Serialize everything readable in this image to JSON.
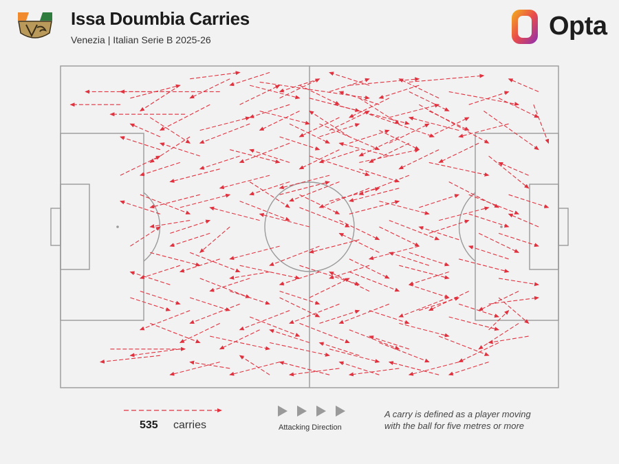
{
  "header": {
    "title": "Issa Doumbia Carries",
    "subtitle": "Venezia | Italian Serie B 2025-26",
    "brand": "Opta"
  },
  "legend": {
    "count": "535",
    "count_label": "carries",
    "direction_label": "Attacking Direction",
    "note_line1": "A carry is defined as a player moving",
    "note_line2": "with the ball for five metres or more"
  },
  "colors": {
    "carry": "#e0313e",
    "pitch_lines": "#9a9a9a",
    "background": "#f2f2f2",
    "arrow_icon": "#9a9a9a",
    "brand_gradient": [
      "#f3b21b",
      "#e94b4b",
      "#8a2fb5"
    ],
    "badge_orange": "#f08a2c",
    "badge_green": "#2e7d3e",
    "badge_gold": "#b99a5b"
  },
  "chart_data": {
    "type": "scatter",
    "subtype": "carry-arrows",
    "title": "Issa Doumbia Carries",
    "subtitle": "Venezia | Italian Serie B 2025-26",
    "total_carries": 535,
    "attacking_direction": "left-to-right",
    "pitch_units": "opta 0-100 (x along length, y across width, 0 = top)",
    "xlim": [
      0,
      100
    ],
    "ylim": [
      0,
      100
    ],
    "carries": [
      [
        32,
        8,
        5,
        8
      ],
      [
        22,
        8,
        12,
        8
      ],
      [
        12,
        12,
        2,
        12
      ],
      [
        25,
        15,
        10,
        15
      ],
      [
        40,
        5,
        62,
        10
      ],
      [
        58,
        6,
        72,
        4
      ],
      [
        70,
        5,
        85,
        3
      ],
      [
        78,
        8,
        92,
        12
      ],
      [
        66,
        10,
        58,
        16
      ],
      [
        55,
        12,
        70,
        18
      ],
      [
        48,
        14,
        40,
        20
      ],
      [
        44,
        10,
        52,
        4
      ],
      [
        62,
        15,
        75,
        22
      ],
      [
        72,
        12,
        86,
        24
      ],
      [
        85,
        14,
        96,
        26
      ],
      [
        95,
        12,
        98,
        24
      ],
      [
        90,
        18,
        80,
        22
      ],
      [
        80,
        20,
        70,
        16
      ],
      [
        68,
        22,
        60,
        28
      ],
      [
        58,
        22,
        50,
        14
      ],
      [
        52,
        18,
        64,
        26
      ],
      [
        46,
        24,
        36,
        30
      ],
      [
        38,
        18,
        28,
        24
      ],
      [
        30,
        12,
        20,
        20
      ],
      [
        26,
        22,
        18,
        30
      ],
      [
        34,
        26,
        44,
        30
      ],
      [
        50,
        28,
        62,
        34
      ],
      [
        60,
        30,
        72,
        26
      ],
      [
        74,
        30,
        86,
        34
      ],
      [
        86,
        28,
        94,
        38
      ],
      [
        78,
        36,
        88,
        44
      ],
      [
        70,
        34,
        60,
        40
      ],
      [
        62,
        38,
        52,
        44
      ],
      [
        54,
        34,
        44,
        38
      ],
      [
        42,
        34,
        32,
        38
      ],
      [
        32,
        32,
        22,
        36
      ],
      [
        24,
        30,
        16,
        34
      ],
      [
        28,
        40,
        18,
        44
      ],
      [
        36,
        42,
        46,
        48
      ],
      [
        48,
        44,
        58,
        50
      ],
      [
        58,
        46,
        68,
        42
      ],
      [
        66,
        48,
        76,
        54
      ],
      [
        76,
        48,
        86,
        44
      ],
      [
        84,
        52,
        92,
        58
      ],
      [
        72,
        56,
        62,
        60
      ],
      [
        60,
        54,
        50,
        58
      ],
      [
        52,
        56,
        42,
        62
      ],
      [
        44,
        56,
        34,
        60
      ],
      [
        30,
        52,
        22,
        56
      ],
      [
        26,
        58,
        36,
        64
      ],
      [
        36,
        62,
        48,
        66
      ],
      [
        48,
        62,
        60,
        68
      ],
      [
        58,
        64,
        68,
        70
      ],
      [
        68,
        62,
        78,
        66
      ],
      [
        80,
        60,
        90,
        64
      ],
      [
        88,
        66,
        96,
        68
      ],
      [
        92,
        70,
        84,
        76
      ],
      [
        78,
        72,
        68,
        78
      ],
      [
        66,
        74,
        56,
        80
      ],
      [
        56,
        74,
        46,
        80
      ],
      [
        46,
        76,
        36,
        82
      ],
      [
        36,
        74,
        26,
        80
      ],
      [
        26,
        76,
        16,
        82
      ],
      [
        18,
        80,
        28,
        86
      ],
      [
        30,
        84,
        42,
        88
      ],
      [
        42,
        86,
        54,
        90
      ],
      [
        54,
        88,
        64,
        92
      ],
      [
        64,
        86,
        74,
        92
      ],
      [
        76,
        84,
        86,
        90
      ],
      [
        86,
        82,
        90,
        76
      ],
      [
        92,
        80,
        84,
        88
      ],
      [
        80,
        92,
        70,
        96
      ],
      [
        68,
        94,
        58,
        96
      ],
      [
        56,
        94,
        46,
        96
      ],
      [
        44,
        92,
        34,
        96
      ],
      [
        32,
        92,
        22,
        96
      ],
      [
        10,
        88,
        25,
        88
      ],
      [
        20,
        90,
        8,
        92
      ],
      [
        38,
        66,
        30,
        70
      ],
      [
        44,
        70,
        52,
        74
      ],
      [
        50,
        72,
        58,
        66
      ],
      [
        62,
        70,
        54,
        64
      ],
      [
        70,
        68,
        78,
        72
      ],
      [
        82,
        70,
        74,
        76
      ],
      [
        86,
        74,
        96,
        72
      ],
      [
        90,
        60,
        82,
        56
      ],
      [
        74,
        62,
        66,
        58
      ],
      [
        64,
        58,
        56,
        52
      ],
      [
        58,
        60,
        66,
        66
      ],
      [
        50,
        50,
        40,
        46
      ],
      [
        40,
        48,
        30,
        44
      ],
      [
        34,
        50,
        28,
        58
      ],
      [
        22,
        52,
        30,
        48
      ],
      [
        24,
        44,
        34,
        40
      ],
      [
        44,
        40,
        54,
        36
      ],
      [
        54,
        42,
        64,
        38
      ],
      [
        64,
        42,
        74,
        46
      ],
      [
        72,
        44,
        80,
        40
      ],
      [
        82,
        40,
        92,
        46
      ],
      [
        90,
        40,
        98,
        44
      ],
      [
        94,
        34,
        88,
        30
      ],
      [
        84,
        24,
        76,
        30
      ],
      [
        76,
        26,
        68,
        32
      ],
      [
        66,
        28,
        56,
        24
      ],
      [
        56,
        26,
        48,
        32
      ],
      [
        46,
        30,
        38,
        26
      ],
      [
        36,
        28,
        28,
        32
      ],
      [
        28,
        20,
        38,
        16
      ],
      [
        40,
        14,
        50,
        18
      ],
      [
        50,
        10,
        60,
        14
      ],
      [
        60,
        10,
        68,
        18
      ],
      [
        66,
        16,
        76,
        12
      ],
      [
        74,
        14,
        82,
        20
      ],
      [
        82,
        12,
        90,
        8
      ],
      [
        88,
        10,
        96,
        16
      ],
      [
        96,
        8,
        90,
        4
      ],
      [
        72,
        6,
        64,
        10
      ],
      [
        62,
        6,
        54,
        2
      ],
      [
        52,
        4,
        44,
        8
      ],
      [
        42,
        2,
        34,
        6
      ],
      [
        34,
        4,
        26,
        10
      ],
      [
        24,
        6,
        16,
        14
      ],
      [
        18,
        16,
        26,
        24
      ],
      [
        28,
        28,
        20,
        24
      ],
      [
        20,
        26,
        12,
        22
      ],
      [
        16,
        40,
        26,
        46
      ],
      [
        26,
        48,
        18,
        50
      ],
      [
        18,
        58,
        28,
        62
      ],
      [
        28,
        66,
        38,
        72
      ],
      [
        38,
        78,
        48,
        84
      ],
      [
        48,
        80,
        58,
        86
      ],
      [
        58,
        82,
        68,
        88
      ],
      [
        68,
        80,
        78,
        84
      ],
      [
        78,
        78,
        88,
        82
      ],
      [
        88,
        86,
        80,
        92
      ],
      [
        70,
        88,
        62,
        84
      ],
      [
        60,
        90,
        52,
        86
      ],
      [
        50,
        86,
        42,
        82
      ],
      [
        40,
        82,
        32,
        88
      ],
      [
        32,
        80,
        24,
        86
      ],
      [
        24,
        88,
        14,
        90
      ],
      [
        14,
        72,
        22,
        76
      ],
      [
        22,
        68,
        14,
        64
      ],
      [
        14,
        56,
        20,
        50
      ],
      [
        20,
        46,
        12,
        42
      ],
      [
        12,
        34,
        20,
        28
      ],
      [
        20,
        22,
        14,
        18
      ],
      [
        14,
        10,
        24,
        6
      ],
      [
        26,
        4,
        36,
        2
      ],
      [
        38,
        6,
        48,
        10
      ],
      [
        48,
        6,
        56,
        12
      ],
      [
        56,
        16,
        48,
        22
      ],
      [
        46,
        18,
        54,
        24
      ],
      [
        54,
        20,
        62,
        14
      ],
      [
        64,
        20,
        72,
        26
      ],
      [
        70,
        24,
        62,
        30
      ],
      [
        60,
        32,
        68,
        36
      ],
      [
        68,
        38,
        58,
        42
      ],
      [
        56,
        36,
        46,
        42
      ],
      [
        46,
        36,
        38,
        40
      ],
      [
        38,
        36,
        46,
        44
      ],
      [
        48,
        40,
        56,
        46
      ],
      [
        56,
        48,
        64,
        54
      ],
      [
        64,
        50,
        72,
        56
      ],
      [
        74,
        52,
        82,
        48
      ],
      [
        82,
        46,
        90,
        50
      ],
      [
        88,
        52,
        96,
        56
      ],
      [
        96,
        50,
        90,
        46
      ],
      [
        80,
        54,
        72,
        50
      ],
      [
        70,
        58,
        78,
        62
      ],
      [
        78,
        64,
        70,
        68
      ],
      [
        62,
        62,
        54,
        66
      ],
      [
        52,
        64,
        44,
        68
      ],
      [
        42,
        64,
        34,
        66
      ],
      [
        32,
        60,
        24,
        64
      ],
      [
        24,
        62,
        16,
        66
      ],
      [
        16,
        70,
        24,
        74
      ],
      [
        26,
        72,
        34,
        76
      ],
      [
        34,
        70,
        42,
        74
      ],
      [
        44,
        72,
        52,
        78
      ],
      [
        52,
        80,
        60,
        76
      ],
      [
        62,
        76,
        70,
        80
      ],
      [
        72,
        76,
        80,
        72
      ],
      [
        80,
        74,
        88,
        78
      ],
      [
        88,
        72,
        94,
        80
      ],
      [
        94,
        84,
        86,
        86
      ],
      [
        86,
        92,
        78,
        96
      ],
      [
        76,
        96,
        66,
        92
      ],
      [
        64,
        96,
        56,
        92
      ],
      [
        54,
        96,
        44,
        92
      ],
      [
        42,
        96,
        36,
        90
      ],
      [
        34,
        94,
        26,
        92
      ],
      [
        58,
        24,
        66,
        20
      ],
      [
        66,
        24,
        74,
        18
      ],
      [
        74,
        22,
        82,
        16
      ],
      [
        52,
        22,
        60,
        18
      ],
      [
        44,
        22,
        52,
        26
      ],
      [
        60,
        26,
        52,
        30
      ],
      [
        64,
        12,
        56,
        8
      ],
      [
        70,
        8,
        78,
        14
      ],
      [
        76,
        10,
        68,
        4
      ],
      [
        54,
        8,
        62,
        4
      ],
      [
        46,
        12,
        38,
        16
      ],
      [
        36,
        12,
        44,
        6
      ]
    ]
  }
}
